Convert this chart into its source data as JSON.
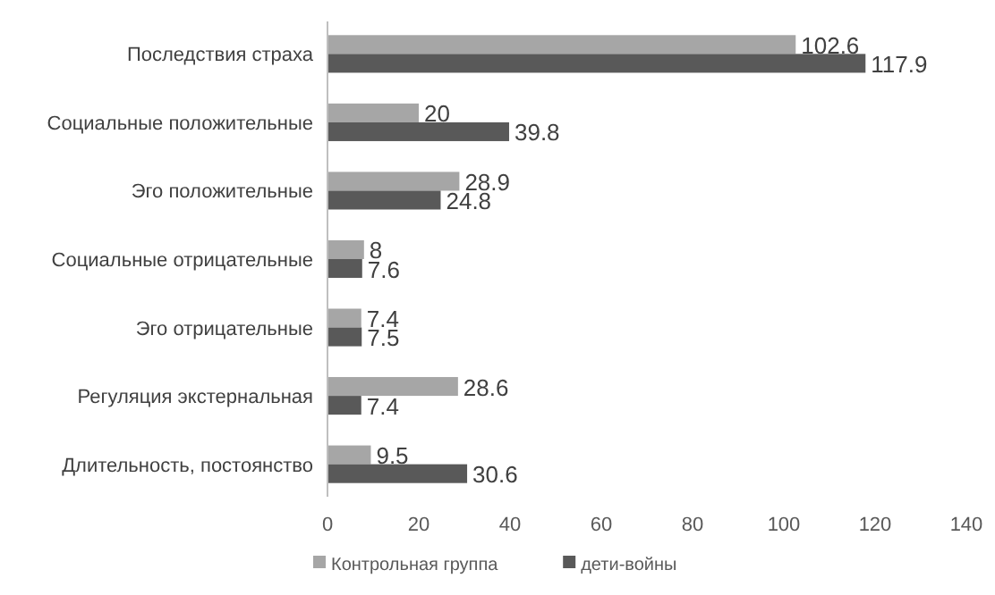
{
  "chart_data": {
    "type": "bar",
    "orientation": "horizontal",
    "categories": [
      "Последствия страха",
      "Социальные положительные",
      "Эго положительные",
      "Социальные отрицательные",
      "Эго отрицательные",
      "Регуляция экстернальная",
      "Длительность, постоянство"
    ],
    "series": [
      {
        "name": "Контрольная группа",
        "color": "#a6a6a6",
        "values": [
          102.6,
          20,
          28.9,
          8,
          7.4,
          28.6,
          9.5
        ]
      },
      {
        "name": "дети-войны",
        "color": "#595959",
        "values": [
          117.9,
          39.8,
          24.8,
          7.6,
          7.5,
          7.4,
          30.6
        ]
      }
    ],
    "xlim": [
      0,
      140
    ],
    "xticks": [
      0,
      20,
      40,
      60,
      80,
      100,
      120,
      140
    ],
    "data_labels": true,
    "legend": "bottom",
    "grid": false
  }
}
